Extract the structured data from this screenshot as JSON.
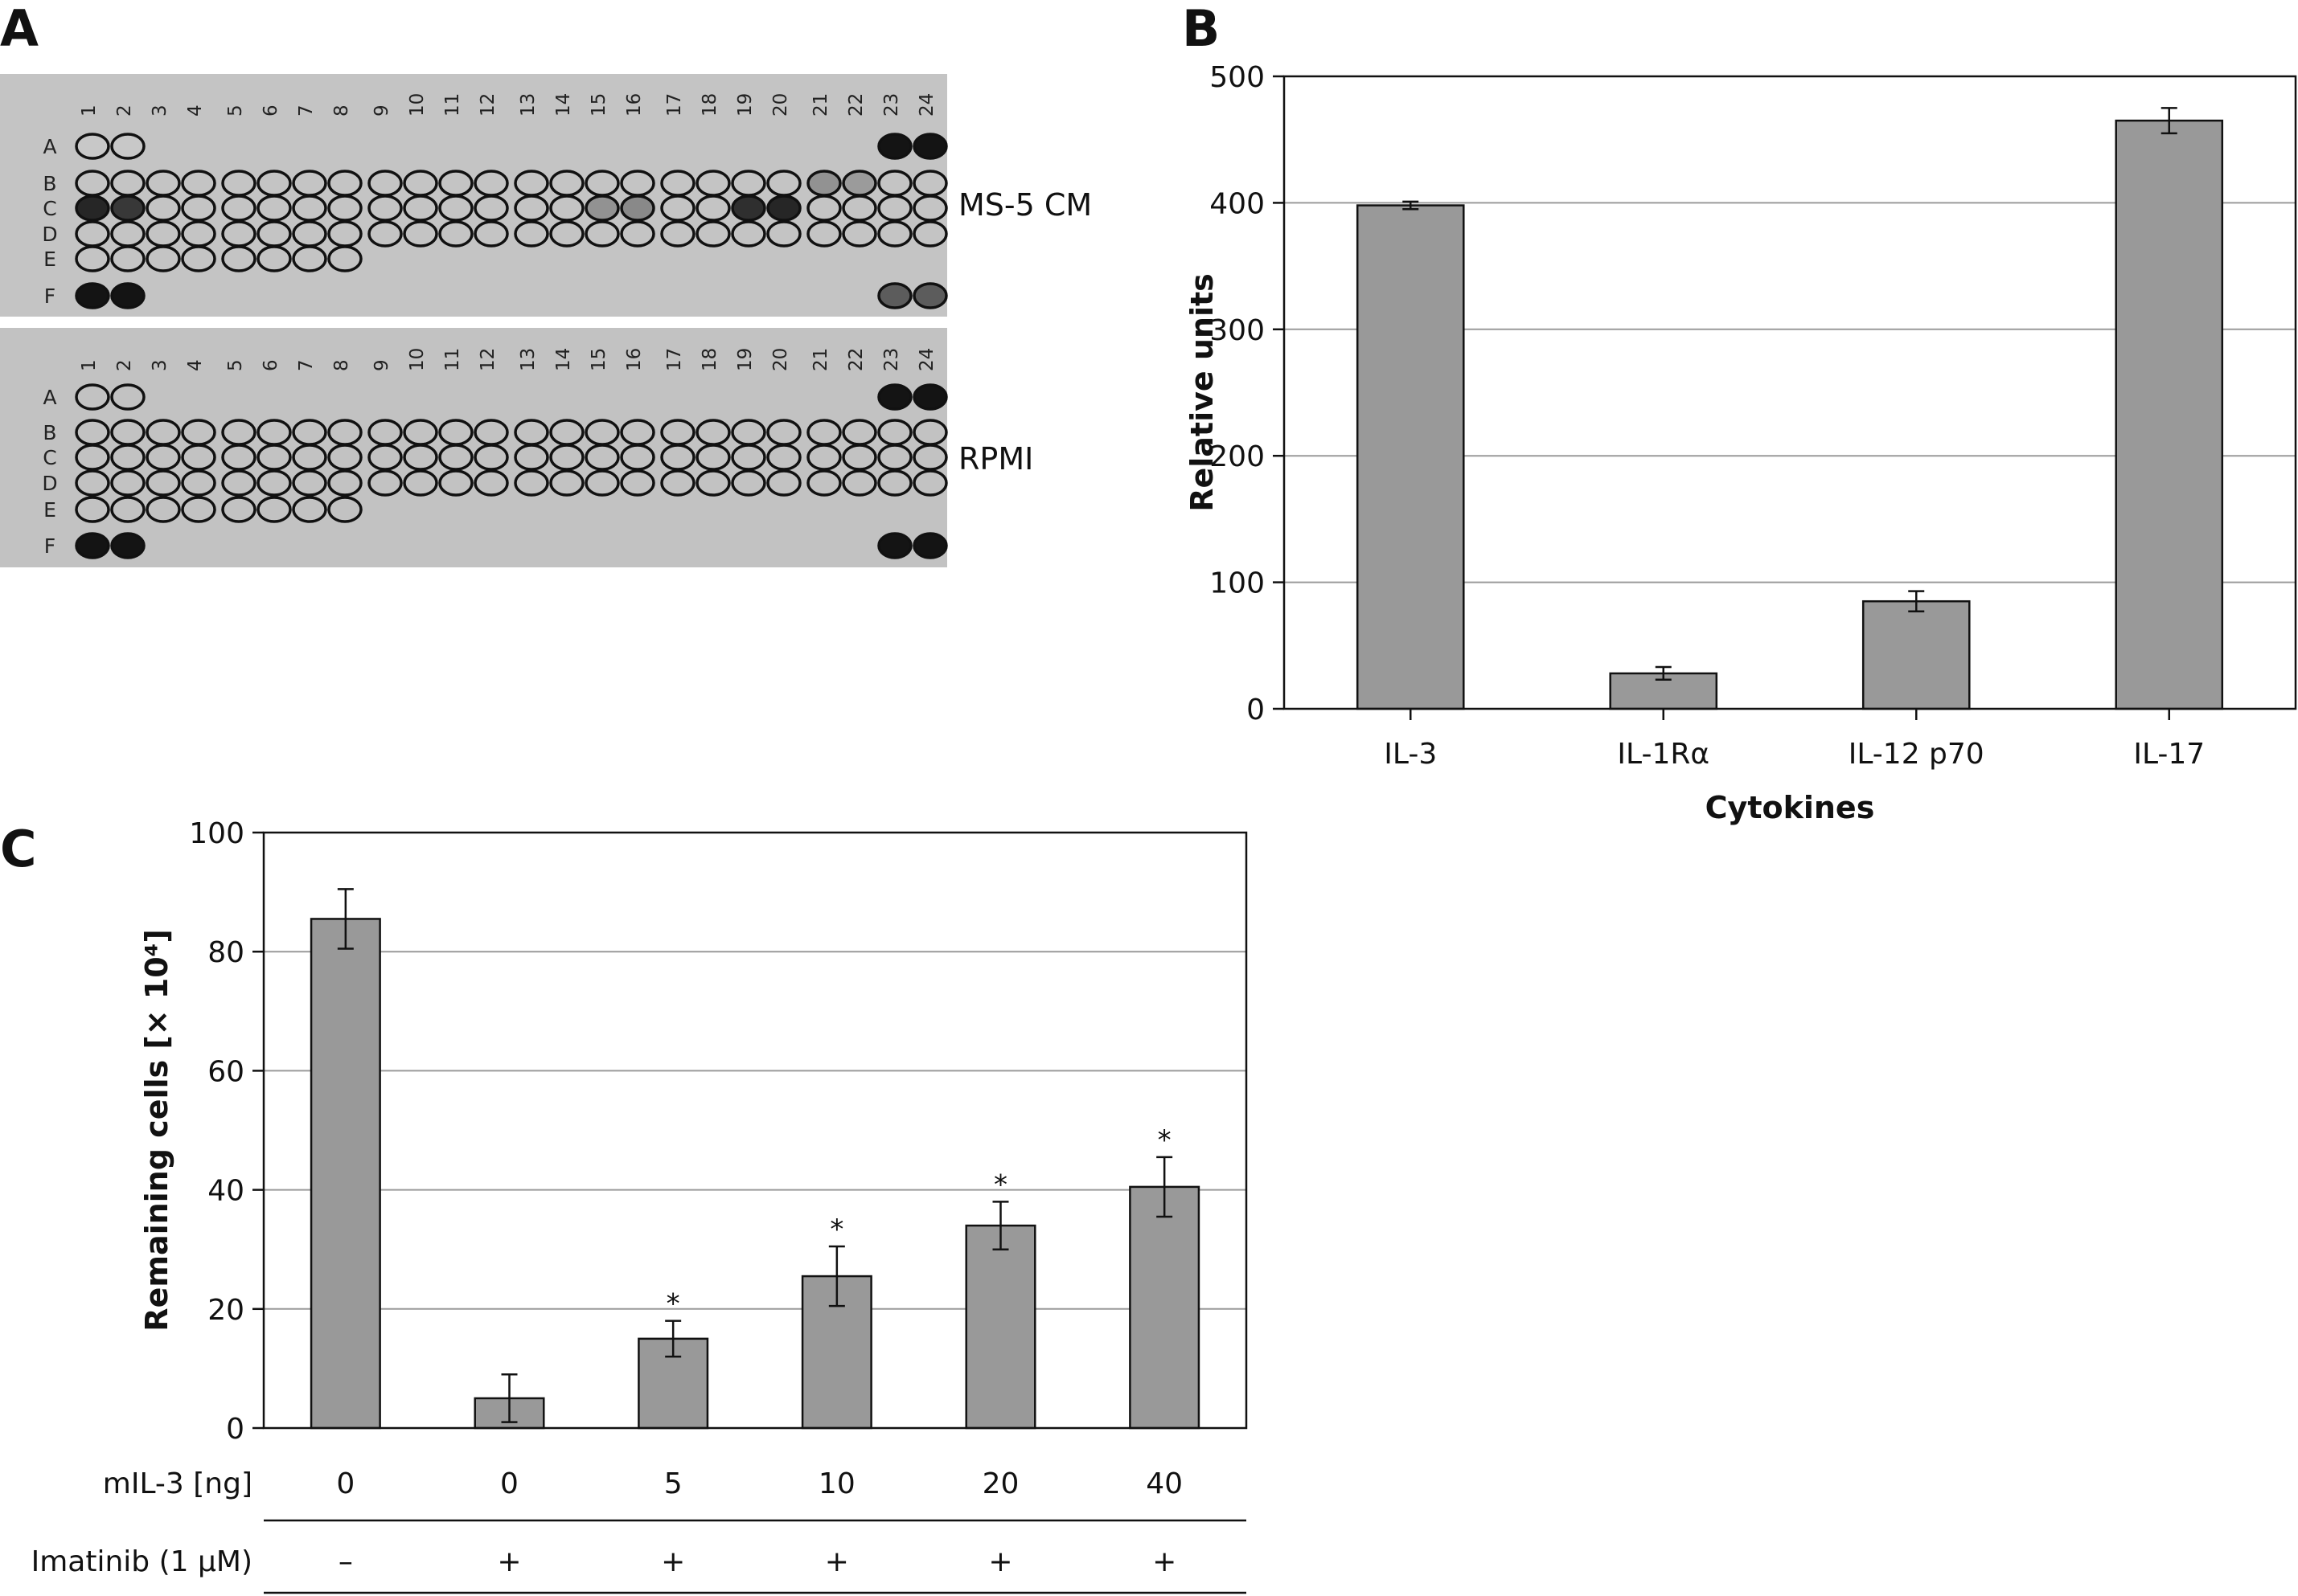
{
  "panels": {
    "a": {
      "letter": "A",
      "blots": [
        {
          "label": "MS-5 CM"
        },
        {
          "label": "RPMI"
        }
      ],
      "column_numbers": [
        "1",
        "2",
        "3",
        "4",
        "5",
        "6",
        "7",
        "8",
        "9",
        "10",
        "11",
        "12",
        "13",
        "14",
        "15",
        "16",
        "17",
        "18",
        "19",
        "20",
        "21",
        "22",
        "23",
        "24"
      ],
      "row_letters": [
        "A",
        "B",
        "C",
        "D",
        "E",
        "F"
      ]
    },
    "b": {
      "letter": "B"
    },
    "c": {
      "letter": "C"
    }
  },
  "chart_data": [
    {
      "type": "bar",
      "panel": "B",
      "categories": [
        "IL-3",
        "IL-1Rα",
        "IL-12 p70",
        "IL-17"
      ],
      "values": [
        398,
        28,
        85,
        465
      ],
      "errors": [
        3,
        5,
        8,
        10
      ],
      "xlabel": "Cytokines",
      "ylabel": "Relative units",
      "ylim": [
        0,
        500
      ],
      "yticks": [
        "0",
        "100",
        "200",
        "300",
        "400",
        "500"
      ],
      "grid": true,
      "bar_color": "#999999"
    },
    {
      "type": "bar",
      "panel": "C",
      "categories": [
        "0",
        "0",
        "5",
        "10",
        "20",
        "40"
      ],
      "values": [
        85.5,
        5,
        15,
        25.5,
        34,
        40.5
      ],
      "errors": [
        5,
        4,
        3,
        5,
        4,
        5
      ],
      "significance": [
        "",
        "",
        "*",
        "*",
        "*",
        "*"
      ],
      "ylabel": "Remaining cells [× 10⁴]",
      "ylim": [
        0,
        100
      ],
      "yticks": [
        "0",
        "20",
        "40",
        "60",
        "80",
        "100"
      ],
      "grid": true,
      "bar_color": "#999999",
      "table_rows": [
        {
          "label": "mIL-3 [ng]",
          "values": [
            "0",
            "0",
            "5",
            "10",
            "20",
            "40"
          ]
        },
        {
          "label": "Imatinib (1 μM)",
          "values": [
            "–",
            "+",
            "+",
            "+",
            "+",
            "+"
          ]
        }
      ]
    }
  ]
}
